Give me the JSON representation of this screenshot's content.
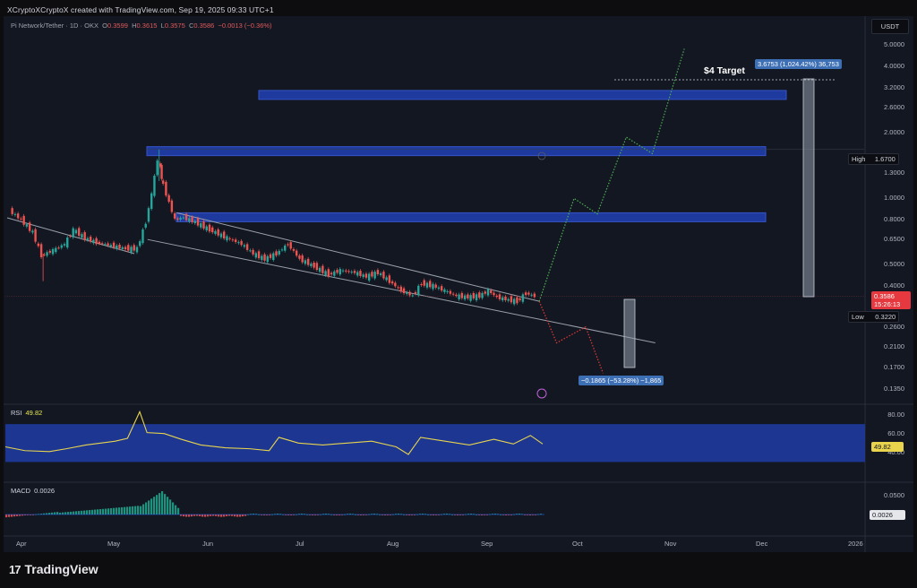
{
  "header": {
    "credit": "XCryptoXCryptoX created with TradingView.com, Sep 19, 2025 09:33 UTC+1"
  },
  "symbol": {
    "name": "Pi Network/Tether · 1D · OKX",
    "open_label": "O",
    "open": "0.3599",
    "high_label": "H",
    "high": "0.3615",
    "low_label": "L",
    "low": "0.3575",
    "close_label": "C",
    "close": "0.3586",
    "change": "−0.0013 (−0.36%)"
  },
  "currency_button": "USDT",
  "price_axis": [
    "5.0000",
    "4.0000",
    "3.2000",
    "2.6000",
    "2.0000",
    "1.3000",
    "1.0000",
    "0.8000",
    "0.6500",
    "0.5000",
    "0.4000",
    "0.2600",
    "0.2100",
    "0.1700",
    "0.1350"
  ],
  "price_axis_top": "5.0000",
  "markers": {
    "high_label": "High",
    "high_value": "1.6700",
    "low_label": "Low",
    "low_value": "0.3220",
    "current_price": "0.3586",
    "countdown": "15:26:13"
  },
  "annotations": {
    "target_text": "$4 Target",
    "up_measure": "3.6753 (1,024.42%) 36,753",
    "down_measure": "−0.1865 (−53.28%) −1,865"
  },
  "rsi": {
    "label": "RSI",
    "value": "49.82",
    "axis": [
      "80.00",
      "60.00",
      "40.00"
    ],
    "tag": "49.82"
  },
  "macd": {
    "label": "MACD",
    "value": "0.0026",
    "axis": [
      "0.0500"
    ],
    "tag": "0.0026"
  },
  "time_axis": [
    "Apr",
    "May",
    "Jun",
    "Jul",
    "Aug",
    "Sep",
    "Oct",
    "Nov",
    "Dec",
    "2026"
  ],
  "brand": {
    "name": "TradingView"
  },
  "colors": {
    "up": "#26a69a",
    "down": "#ef5350",
    "zone": "#1e3a9e",
    "rsi_line": "#e8d44d",
    "projection_up": "#4caf50",
    "projection_down": "#e53935",
    "background": "#131722"
  },
  "chart_data": {
    "type": "candlestick",
    "title": "",
    "xlabel": "",
    "ylabel": "",
    "y_scale": "log",
    "ylim": [
      0.12,
      5.6
    ],
    "x_range": [
      "2025-03-20",
      "2026-01-10"
    ],
    "close_series": [
      [
        "2025-03-22",
        0.88
      ],
      [
        "2025-03-26",
        0.8
      ],
      [
        "2025-03-30",
        0.7
      ],
      [
        "2025-04-02",
        0.55
      ],
      [
        "2025-04-06",
        0.58
      ],
      [
        "2025-04-10",
        0.62
      ],
      [
        "2025-04-13",
        0.72
      ],
      [
        "2025-04-17",
        0.66
      ],
      [
        "2025-04-21",
        0.63
      ],
      [
        "2025-04-26",
        0.61
      ],
      [
        "2025-05-01",
        0.59
      ],
      [
        "2025-05-05",
        0.59
      ],
      [
        "2025-05-08",
        0.78
      ],
      [
        "2025-05-10",
        1.05
      ],
      [
        "2025-05-12",
        1.5
      ],
      [
        "2025-05-13",
        1.25
      ],
      [
        "2025-05-15",
        1.05
      ],
      [
        "2025-05-18",
        0.8
      ],
      [
        "2025-05-21",
        0.82
      ],
      [
        "2025-05-25",
        0.78
      ],
      [
        "2025-05-30",
        0.72
      ],
      [
        "2025-06-05",
        0.66
      ],
      [
        "2025-06-10",
        0.62
      ],
      [
        "2025-06-14",
        0.56
      ],
      [
        "2025-06-18",
        0.53
      ],
      [
        "2025-06-22",
        0.56
      ],
      [
        "2025-06-26",
        0.62
      ],
      [
        "2025-06-30",
        0.53
      ],
      [
        "2025-07-05",
        0.49
      ],
      [
        "2025-07-10",
        0.45
      ],
      [
        "2025-07-14",
        0.47
      ],
      [
        "2025-07-19",
        0.46
      ],
      [
        "2025-07-23",
        0.44
      ],
      [
        "2025-07-27",
        0.46
      ],
      [
        "2025-07-31",
        0.42
      ],
      [
        "2025-08-04",
        0.38
      ],
      [
        "2025-08-08",
        0.36
      ],
      [
        "2025-08-11",
        0.41
      ],
      [
        "2025-08-15",
        0.4
      ],
      [
        "2025-08-19",
        0.38
      ],
      [
        "2025-08-23",
        0.36
      ],
      [
        "2025-08-27",
        0.355
      ],
      [
        "2025-08-31",
        0.36
      ],
      [
        "2025-09-03",
        0.38
      ],
      [
        "2025-09-06",
        0.355
      ],
      [
        "2025-09-10",
        0.345
      ],
      [
        "2025-09-13",
        0.34
      ],
      [
        "2025-09-16",
        0.37
      ],
      [
        "2025-09-19",
        0.3586
      ]
    ],
    "projection_up": [
      [
        "2025-09-20",
        0.34
      ],
      [
        "2025-10-02",
        1.0
      ],
      [
        "2025-10-10",
        0.85
      ],
      [
        "2025-10-20",
        1.9
      ],
      [
        "2025-10-29",
        1.6
      ],
      [
        "2025-11-09",
        4.8
      ]
    ],
    "projection_down": [
      [
        "2025-09-20",
        0.34
      ],
      [
        "2025-09-26",
        0.22
      ],
      [
        "2025-10-06",
        0.26
      ],
      [
        "2025-10-12",
        0.16
      ]
    ],
    "zones": [
      [
        0.79,
        0.86
      ],
      [
        1.58,
        1.72
      ],
      [
        2.85,
        3.1
      ]
    ],
    "channel": {
      "upper": [
        [
          "2025-05-18",
          0.86
        ],
        [
          "2025-09-20",
          0.34
        ]
      ],
      "lower": [
        [
          "2025-05-08",
          0.65
        ],
        [
          "2025-10-30",
          0.22
        ]
      ]
    },
    "high": 1.67,
    "low": 0.322,
    "rsi_series": [
      [
        0,
        46
      ],
      [
        8,
        42
      ],
      [
        18,
        41
      ],
      [
        25,
        44
      ],
      [
        33,
        48
      ],
      [
        45,
        52
      ],
      [
        50,
        55
      ],
      [
        55,
        83
      ],
      [
        58,
        61
      ],
      [
        65,
        60
      ],
      [
        72,
        54
      ],
      [
        80,
        48
      ],
      [
        90,
        45
      ],
      [
        100,
        44
      ],
      [
        108,
        42
      ],
      [
        112,
        56
      ],
      [
        120,
        50
      ],
      [
        130,
        48
      ],
      [
        140,
        50
      ],
      [
        150,
        52
      ],
      [
        160,
        46
      ],
      [
        165,
        38
      ],
      [
        170,
        56
      ],
      [
        180,
        52
      ],
      [
        190,
        48
      ],
      [
        200,
        54
      ],
      [
        208,
        49
      ],
      [
        215,
        58
      ],
      [
        220,
        49
      ]
    ],
    "rsi_ylim": [
      0,
      100
    ],
    "macd_histogram_range": [
      -0.02,
      0.05
    ]
  }
}
